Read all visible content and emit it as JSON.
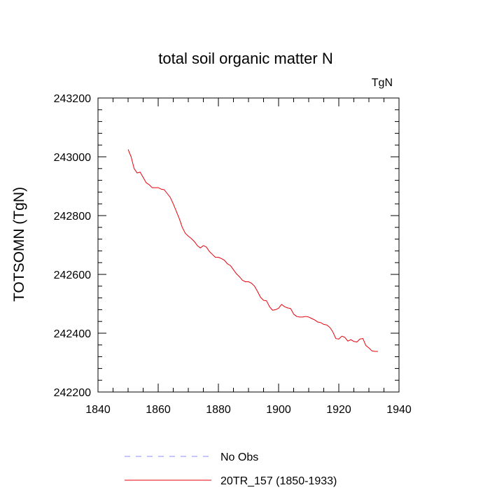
{
  "chart_data": {
    "type": "line",
    "title": "total soil organic matter N",
    "units": "TgN",
    "xlabel": "",
    "ylabel": "TOTSOMN  (TgN)",
    "xlim": [
      1840,
      1940
    ],
    "ylim": [
      242200,
      243200
    ],
    "xticks": [
      1840,
      1860,
      1880,
      1900,
      1920,
      1940
    ],
    "yticks": [
      242200,
      242400,
      242600,
      242800,
      243000,
      243200
    ],
    "x_minor_step": 5,
    "y_minor_step": 40,
    "grid": false,
    "legend_position": "bottom",
    "series": [
      {
        "name": "20TR_157 (1850-1933)",
        "color": "#e8000b",
        "dash": "solid",
        "x": [
          1850,
          1851,
          1852,
          1853,
          1854,
          1855,
          1856,
          1857,
          1858,
          1859,
          1860,
          1861,
          1862,
          1863,
          1864,
          1865,
          1866,
          1867,
          1868,
          1869,
          1870,
          1871,
          1872,
          1873,
          1874,
          1875,
          1876,
          1877,
          1878,
          1879,
          1880,
          1881,
          1882,
          1883,
          1884,
          1885,
          1886,
          1887,
          1888,
          1889,
          1890,
          1891,
          1892,
          1893,
          1894,
          1895,
          1896,
          1897,
          1898,
          1899,
          1900,
          1901,
          1902,
          1903,
          1904,
          1905,
          1906,
          1907,
          1908,
          1909,
          1910,
          1911,
          1912,
          1913,
          1914,
          1915,
          1916,
          1917,
          1918,
          1919,
          1920,
          1921,
          1922,
          1923,
          1924,
          1925,
          1926,
          1927,
          1928,
          1929,
          1930,
          1931,
          1932,
          1933
        ],
        "y": [
          243025,
          243000,
          242960,
          242945,
          242948,
          242930,
          242912,
          242905,
          242895,
          242895,
          242895,
          242890,
          242888,
          242875,
          242862,
          242840,
          242815,
          242790,
          242760,
          242740,
          242730,
          242722,
          242712,
          242698,
          242690,
          242698,
          242693,
          242678,
          242668,
          242658,
          242658,
          242654,
          242648,
          242636,
          242630,
          242616,
          242602,
          242592,
          242580,
          242575,
          242575,
          242570,
          242560,
          242542,
          242522,
          242512,
          242510,
          242490,
          242478,
          242480,
          242485,
          242498,
          242490,
          242486,
          242484,
          242465,
          242457,
          242455,
          242455,
          242457,
          242455,
          242450,
          242445,
          242438,
          242436,
          242430,
          242428,
          242420,
          242405,
          242382,
          242380,
          242390,
          242386,
          242373,
          242378,
          242372,
          242370,
          242380,
          242382,
          242358,
          242350,
          242340,
          242338,
          242338
        ]
      },
      {
        "name": "No Obs",
        "color": "#8f8fff",
        "dash": "dashed",
        "x": [],
        "y": []
      }
    ]
  }
}
